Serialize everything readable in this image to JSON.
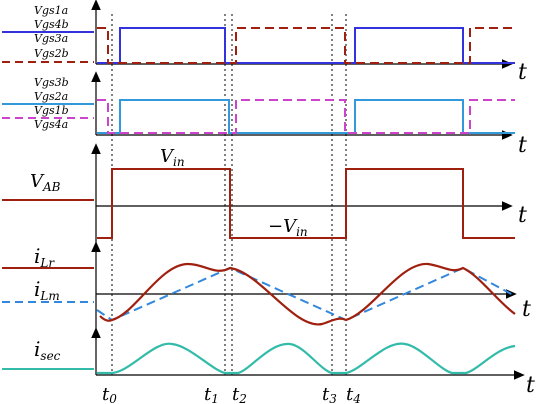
{
  "panel1": {
    "labels": [
      {
        "main": "Vgs1a",
        "sub": ""
      },
      {
        "main": "Vgs4b",
        "sub": ""
      },
      {
        "main": "Vgs3a",
        "sub": ""
      },
      {
        "main": "Vgs2b",
        "sub": ""
      }
    ],
    "axis": "t",
    "colors": {
      "solid": "#3333dd",
      "dashed": "#a02010"
    }
  },
  "panel2": {
    "labels": [
      {
        "main": "Vgs3b",
        "sub": ""
      },
      {
        "main": "Vgs2a",
        "sub": ""
      },
      {
        "main": "Vgs1b",
        "sub": ""
      },
      {
        "main": "Vgs4a",
        "sub": ""
      }
    ],
    "axis": "t",
    "colors": {
      "solid": "#3399dd",
      "dashed": "#cc44cc"
    }
  },
  "panel3": {
    "legend": {
      "main": "V",
      "sub": "AB"
    },
    "high": {
      "main": "V",
      "sub": "in"
    },
    "low": {
      "main": "−V",
      "sub": "in"
    },
    "axis": "t",
    "color": "#a02010"
  },
  "panel4": {
    "legend1": {
      "main": "i",
      "sub": "Lr"
    },
    "legend2": {
      "main": "i",
      "sub": "Lm"
    },
    "axis": "t",
    "colors": {
      "ilr": "#a02010",
      "ilm": "#3388dd"
    }
  },
  "panel5": {
    "legend": {
      "main": "i",
      "sub": "sec"
    },
    "axis": "t",
    "color": "#33bbaa"
  },
  "time_labels": [
    {
      "main": "t",
      "sub": "0"
    },
    {
      "main": "t",
      "sub": "1"
    },
    {
      "main": "t",
      "sub": "2"
    },
    {
      "main": "t",
      "sub": "3"
    },
    {
      "main": "t",
      "sub": "4"
    }
  ]
}
